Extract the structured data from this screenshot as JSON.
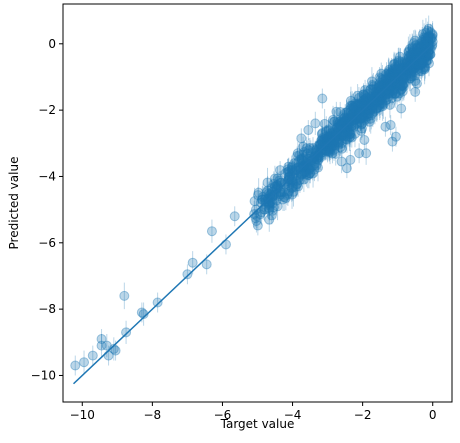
{
  "chart_data": {
    "type": "scatter",
    "title": "",
    "xlabel": "Target value",
    "ylabel": "Predicted value",
    "xlim": [
      -10.55,
      0.55
    ],
    "ylim": [
      -10.8,
      1.2
    ],
    "x_ticks": [
      -10,
      -8,
      -6,
      -4,
      -2,
      0
    ],
    "x_tick_labels": [
      "−10",
      "−8",
      "−6",
      "−4",
      "−2",
      "0"
    ],
    "y_ticks": [
      -10,
      -8,
      -6,
      -4,
      -2,
      0
    ],
    "y_tick_labels": [
      "−10",
      "−8",
      "−6",
      "−4",
      "−2",
      "0"
    ],
    "grid": false,
    "color": "#1f77b4",
    "marker_alpha": 0.3,
    "reference_line": {
      "x": [
        -10.25,
        0.0
      ],
      "y": [
        -10.25,
        0.0
      ]
    },
    "series": [
      {
        "x": [
          -10.2,
          -9.95,
          -9.7,
          -9.45,
          -9.45,
          -9.3,
          -9.25,
          -9.1,
          -9.05,
          -8.8,
          -8.75,
          -8.3,
          -8.25,
          -7.85,
          -7.0,
          -6.85,
          -6.45,
          -6.3,
          -5.9,
          -5.65,
          -4.8,
          -4.6,
          -4.2,
          -4.1,
          -3.95,
          -3.85,
          -3.75,
          -3.7,
          -3.6,
          -3.55,
          -3.5,
          -3.4,
          -3.35,
          -3.2,
          -3.15,
          -3.05,
          -2.95,
          -2.9,
          -2.75,
          -2.6,
          -2.55,
          -2.45,
          -2.35,
          -2.3,
          -2.1,
          -1.95,
          -1.9,
          -1.8,
          -1.6,
          -1.35,
          -1.2,
          -1.15,
          -1.05,
          -0.9,
          -0.85,
          -0.5,
          -0.45,
          -0.3
        ],
        "y": [
          -9.7,
          -9.6,
          -9.4,
          -9.1,
          -8.9,
          -9.1,
          -9.4,
          -9.2,
          -9.25,
          -7.6,
          -8.7,
          -8.1,
          -8.15,
          -7.8,
          -6.95,
          -6.6,
          -6.65,
          -5.65,
          -6.05,
          -5.2,
          -5.0,
          -4.35,
          -3.9,
          -4.0,
          -3.6,
          -3.3,
          -2.85,
          -3.1,
          -3.15,
          -2.6,
          -3.9,
          -3.5,
          -2.4,
          -3.05,
          -1.65,
          -2.8,
          -3.25,
          -2.7,
          -2.05,
          -3.55,
          -2.75,
          -3.75,
          -3.5,
          -2.2,
          -3.3,
          -2.9,
          -3.3,
          -2.35,
          -1.75,
          -2.5,
          -2.45,
          -2.95,
          -2.8,
          -1.95,
          -1.25,
          -1.45,
          -1.2,
          -0.6
        ],
        "err": [
          0.3,
          0.35,
          0.3,
          0.35,
          0.3,
          0.35,
          0.3,
          0.35,
          0.3,
          0.4,
          0.35,
          0.3,
          0.35,
          0.3,
          0.3,
          0.35,
          0.3,
          0.35,
          0.3,
          0.3,
          0.35,
          0.3,
          0.3,
          0.35,
          0.3,
          0.35,
          0.3,
          0.3,
          0.35,
          0.3,
          0.3,
          0.3,
          0.35,
          0.3,
          0.3,
          0.35,
          0.3,
          0.3,
          0.3,
          0.35,
          0.3,
          0.3,
          0.3,
          0.3,
          0.3,
          0.3,
          0.35,
          0.3,
          0.3,
          0.3,
          0.3,
          0.3,
          0.3,
          0.3,
          0.3,
          0.3,
          0.3,
          0.3
        ]
      }
    ],
    "dense_band": {
      "x_range": [
        -5.1,
        0.0
      ],
      "slope": 1.0,
      "intercept": 0.0,
      "spread": 0.45
    }
  }
}
